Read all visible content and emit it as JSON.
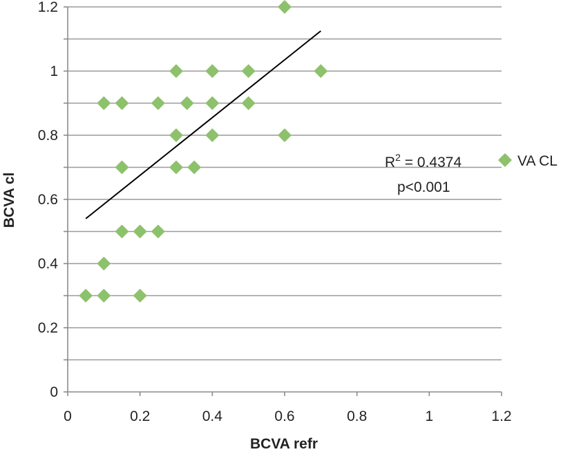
{
  "chart_data": {
    "type": "scatter",
    "title": "",
    "xlabel": "BCVA refr",
    "ylabel": "BCVA cl",
    "xlim": [
      0,
      1.2
    ],
    "ylim": [
      0,
      1.2
    ],
    "x_ticks": [
      "0",
      "0.2",
      "0.4",
      "0.6",
      "0.8",
      "1",
      "1.2"
    ],
    "y_ticks": [
      "0",
      "0.2",
      "0.4",
      "0.6",
      "0.8",
      "1",
      "1.2"
    ],
    "grid": "horizontal",
    "legend_position": "right",
    "series": [
      {
        "name": "VA CL",
        "color": "#8DC16B",
        "marker": "diamond",
        "points": [
          [
            0.6,
            1.2
          ],
          [
            0.3,
            1.0
          ],
          [
            0.4,
            1.0
          ],
          [
            0.5,
            1.0
          ],
          [
            0.7,
            1.0
          ],
          [
            0.1,
            0.9
          ],
          [
            0.15,
            0.9
          ],
          [
            0.25,
            0.9
          ],
          [
            0.33,
            0.9
          ],
          [
            0.4,
            0.9
          ],
          [
            0.5,
            0.9
          ],
          [
            0.3,
            0.8
          ],
          [
            0.4,
            0.8
          ],
          [
            0.6,
            0.8
          ],
          [
            0.15,
            0.7
          ],
          [
            0.3,
            0.7
          ],
          [
            0.35,
            0.7
          ],
          [
            0.15,
            0.5
          ],
          [
            0.2,
            0.5
          ],
          [
            0.25,
            0.5
          ],
          [
            0.1,
            0.4
          ],
          [
            0.05,
            0.3
          ],
          [
            0.1,
            0.3
          ],
          [
            0.2,
            0.3
          ]
        ]
      }
    ],
    "trendline": {
      "type": "linear",
      "color": "#000000",
      "x_start": 0.05,
      "y_start": 0.54,
      "x_end": 0.7,
      "y_end": 1.125
    },
    "annotations": {
      "r2_prefix": "R",
      "r2_sup": "2",
      "r2_value": " = 0.4374",
      "p_value": "p<0.001"
    }
  }
}
